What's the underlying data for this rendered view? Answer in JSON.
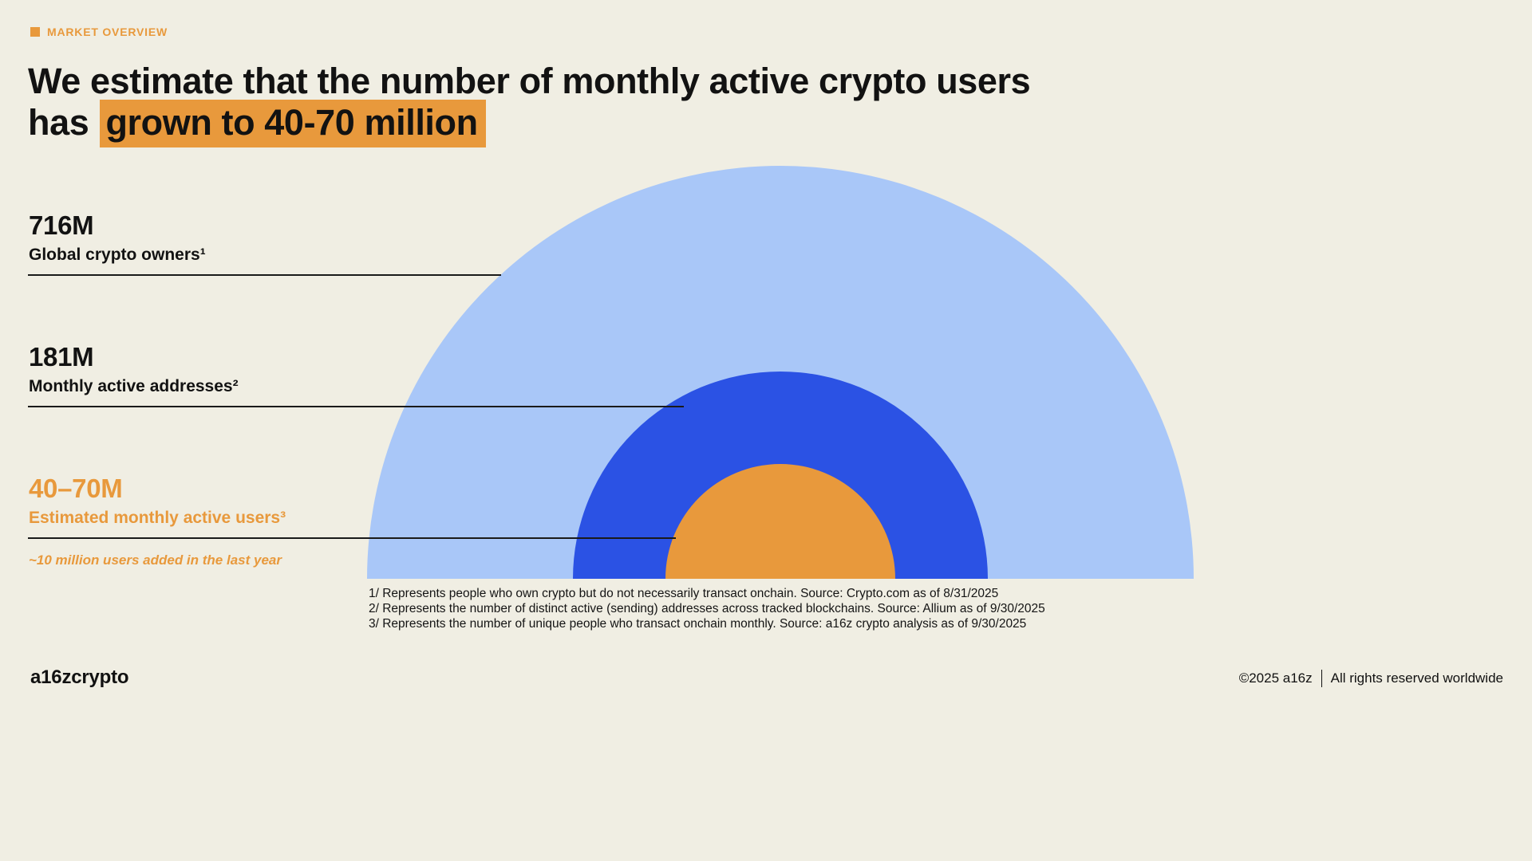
{
  "eyebrow": {
    "label": "MARKET OVERVIEW"
  },
  "title": {
    "line1": "We estimate that the number of monthly active crypto users",
    "line2_prefix": "has ",
    "line2_highlight": "grown to 40-70 million"
  },
  "chart_data": {
    "type": "pie",
    "subtype": "nested-proportional-semicircles",
    "title": "Monthly active crypto users vs. global owners and active addresses",
    "units": "millions",
    "series": [
      {
        "name": "Global crypto owners",
        "label": "Global crypto owners¹",
        "value_label": "716M",
        "value": 716,
        "footnote": 1,
        "color": "#A9C7F8"
      },
      {
        "name": "Monthly active addresses",
        "label": "Monthly active addresses²",
        "value_label": "181M",
        "value": 181,
        "footnote": 2,
        "color": "#2B52E4"
      },
      {
        "name": "Estimated monthly active users",
        "label": "Estimated monthly active users³",
        "value_label": "40–70M",
        "value": 55,
        "value_range": [
          40,
          70
        ],
        "footnote": 3,
        "color": "#E8993C"
      }
    ],
    "annotation": "~10 million users added in the last year",
    "layout": "concentric semicircles on a shared baseline, area proportional to value, labels on the left with leader lines"
  },
  "footnotes": [
    "1/ Represents people who own crypto but do not necessarily transact onchain. Source: Crypto.com as of 8/31/2025",
    "2/ Represents the number of distinct active (sending) addresses across tracked blockchains. Source: Allium as of 9/30/2025",
    "3/ Represents the number of unique people who transact onchain monthly. Source: a16z crypto analysis as of 9/30/2025"
  ],
  "footer": {
    "logo": "a16zcrypto",
    "copyright": "©2025 a16z",
    "rights": "All rights reserved worldwide"
  },
  "colors": {
    "bg": "#F0EEE3",
    "accent": "#E8993C",
    "blue": "#2B52E4",
    "light_blue": "#A9C7F8",
    "ink": "#121212"
  }
}
